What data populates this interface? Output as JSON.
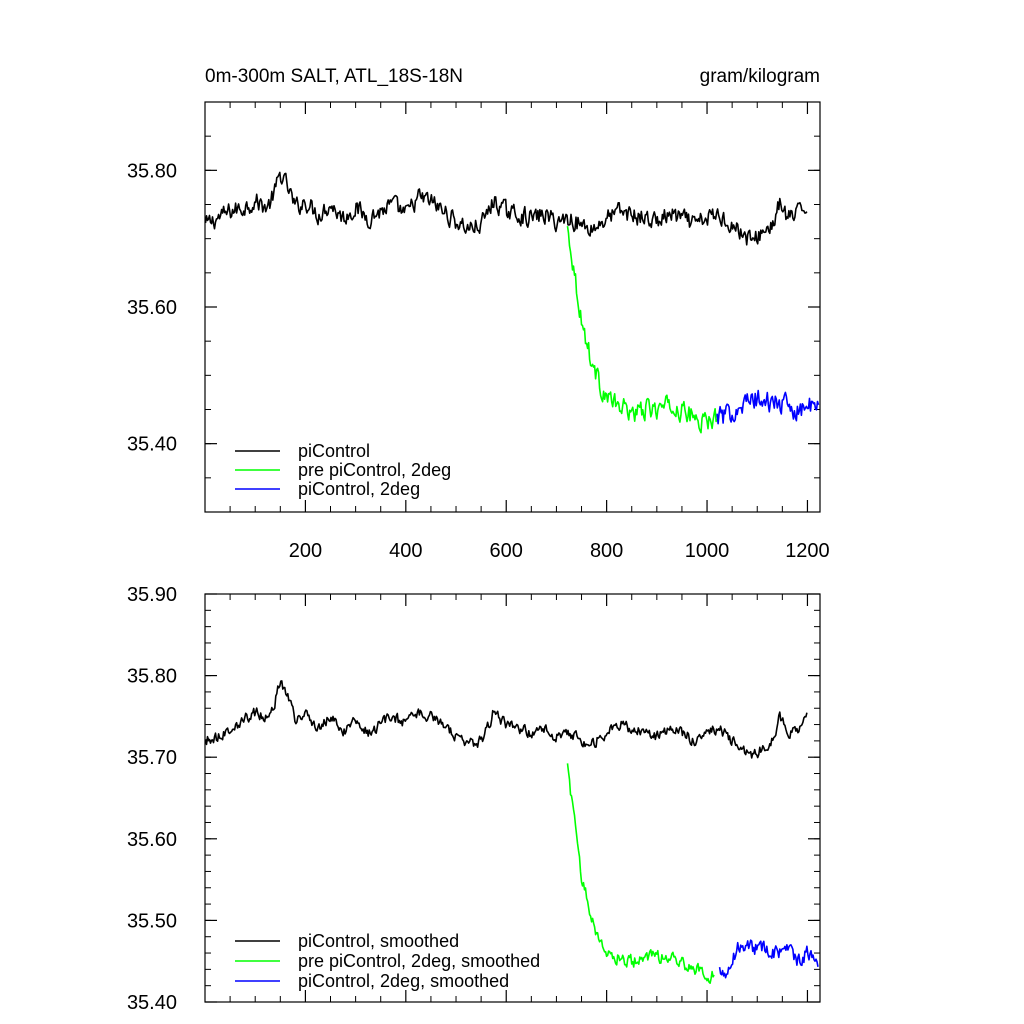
{
  "figure": {
    "left_title": "0m-300m SALT, ATL_18S-18N",
    "right_title": "gram/kilogram"
  },
  "chart_data": [
    {
      "type": "line",
      "title": "0m-300m SALT, ATL_18S-18N",
      "units": "gram/kilogram",
      "xlim": [
        0,
        1225
      ],
      "ylim": [
        35.3,
        35.9
      ],
      "x_ticks": [
        200,
        400,
        600,
        800,
        1000,
        1200
      ],
      "x_tick_labels": [
        "200",
        "400",
        "600",
        "800",
        "1000",
        "1200"
      ],
      "y_ticks": [
        35.4,
        35.6,
        35.8
      ],
      "y_tick_labels": [
        "35.40",
        "35.60",
        "35.80"
      ],
      "grid": false,
      "legend": "bottom-left",
      "series": [
        {
          "name": "piControl",
          "color": "#000000",
          "x": [
            1,
            25,
            50,
            75,
            100,
            125,
            140,
            150,
            165,
            180,
            200,
            225,
            250,
            275,
            300,
            325,
            350,
            375,
            400,
            425,
            450,
            475,
            500,
            525,
            550,
            575,
            600,
            625,
            650,
            675,
            700,
            725,
            750,
            775,
            800,
            825,
            850,
            875,
            900,
            925,
            950,
            975,
            1000,
            1025,
            1050,
            1075,
            1090,
            1110,
            1130,
            1145,
            1160,
            1180,
            1200
          ],
          "y": [
            35.72,
            35.73,
            35.74,
            35.745,
            35.755,
            35.745,
            35.77,
            35.795,
            35.775,
            35.745,
            35.755,
            35.735,
            35.75,
            35.73,
            35.745,
            35.73,
            35.74,
            35.75,
            35.735,
            35.76,
            35.755,
            35.74,
            35.725,
            35.715,
            35.72,
            35.755,
            35.74,
            35.735,
            35.73,
            35.735,
            35.725,
            35.73,
            35.72,
            35.715,
            35.73,
            35.74,
            35.735,
            35.73,
            35.725,
            35.735,
            35.73,
            35.72,
            35.73,
            35.735,
            35.72,
            35.705,
            35.695,
            35.71,
            35.72,
            35.75,
            35.73,
            35.735,
            35.75
          ],
          "noise": 0.012
        },
        {
          "name": "pre piControl, 2deg",
          "color": "#00ff00",
          "x": [
            722,
            730,
            740,
            750,
            760,
            770,
            780,
            790,
            800,
            820,
            840,
            860,
            880,
            900,
            920,
            940,
            960,
            980,
            1000,
            1020
          ],
          "y": [
            35.715,
            35.68,
            35.63,
            35.58,
            35.55,
            35.52,
            35.5,
            35.48,
            35.47,
            35.455,
            35.45,
            35.445,
            35.45,
            35.45,
            35.455,
            35.45,
            35.445,
            35.435,
            35.43,
            35.44
          ],
          "noise": 0.013
        },
        {
          "name": "piControl, 2deg",
          "color": "#0000ff",
          "x": [
            1020,
            1040,
            1060,
            1080,
            1100,
            1120,
            1140,
            1160,
            1180,
            1200,
            1222
          ],
          "y": [
            35.44,
            35.44,
            35.455,
            35.46,
            35.465,
            35.46,
            35.46,
            35.455,
            35.45,
            35.455,
            35.45
          ],
          "noise": 0.014
        }
      ]
    },
    {
      "type": "line",
      "xlim": [
        0,
        1225
      ],
      "ylim": [
        35.4,
        35.9
      ],
      "x_ticks": [
        200,
        400,
        600,
        800,
        1000,
        1200
      ],
      "x_tick_labels": [
        "",
        "",
        "",
        "",
        "",
        ""
      ],
      "y_ticks": [
        35.4,
        35.5,
        35.6,
        35.7,
        35.8,
        35.9
      ],
      "y_tick_labels": [
        "35.40",
        "35.50",
        "35.60",
        "35.70",
        "35.80",
        "35.90"
      ],
      "grid": false,
      "legend": "bottom-left",
      "series": [
        {
          "name": "piControl, smoothed",
          "color": "#000000",
          "x": [
            1,
            25,
            50,
            75,
            100,
            125,
            140,
            150,
            165,
            180,
            200,
            225,
            250,
            275,
            300,
            325,
            350,
            375,
            400,
            425,
            450,
            475,
            500,
            525,
            550,
            575,
            600,
            625,
            650,
            675,
            700,
            725,
            750,
            775,
            800,
            825,
            850,
            875,
            900,
            925,
            950,
            975,
            1000,
            1025,
            1050,
            1075,
            1090,
            1110,
            1130,
            1145,
            1160,
            1180,
            1200
          ],
          "y": [
            35.72,
            35.725,
            35.735,
            35.745,
            35.755,
            35.748,
            35.77,
            35.795,
            35.775,
            35.745,
            35.755,
            35.735,
            35.75,
            35.73,
            35.745,
            35.73,
            35.74,
            35.75,
            35.74,
            35.755,
            35.75,
            35.74,
            35.725,
            35.715,
            35.72,
            35.755,
            35.74,
            35.735,
            35.73,
            35.735,
            35.725,
            35.73,
            35.72,
            35.718,
            35.73,
            35.74,
            35.735,
            35.73,
            35.725,
            35.735,
            35.73,
            35.72,
            35.73,
            35.735,
            35.72,
            35.71,
            35.7,
            35.71,
            35.72,
            35.75,
            35.73,
            35.735,
            35.75
          ],
          "noise": 0.006
        },
        {
          "name": "pre piControl, 2deg, smoothed",
          "color": "#00ff00",
          "x": [
            722,
            730,
            740,
            750,
            760,
            770,
            780,
            790,
            800,
            820,
            840,
            860,
            880,
            900,
            920,
            940,
            960,
            980,
            1000,
            1015
          ],
          "y": [
            35.69,
            35.65,
            35.6,
            35.555,
            35.53,
            35.505,
            35.485,
            35.47,
            35.46,
            35.455,
            35.45,
            35.45,
            35.455,
            35.455,
            35.455,
            35.45,
            35.445,
            35.44,
            35.43,
            35.435
          ],
          "noise": 0.007
        },
        {
          "name": "piControl, 2deg, smoothed",
          "color": "#0000ff",
          "x": [
            1025,
            1040,
            1060,
            1080,
            1100,
            1120,
            1140,
            1160,
            1180,
            1200,
            1222
          ],
          "y": [
            35.44,
            35.435,
            35.465,
            35.47,
            35.465,
            35.465,
            35.46,
            35.465,
            35.45,
            35.46,
            35.45
          ],
          "noise": 0.008
        }
      ]
    }
  ]
}
